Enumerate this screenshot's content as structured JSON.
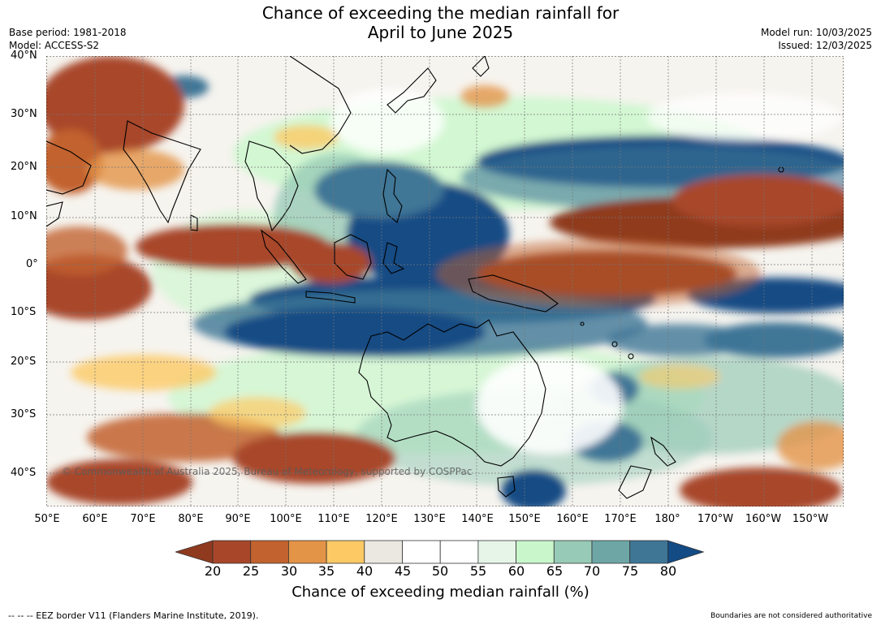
{
  "title_line1": "Chance of exceeding the median rainfall for",
  "title_line2": "April to June 2025",
  "base_period": "Base period: 1981-2018",
  "model": "Model: ACCESS-S2",
  "model_run": "Model run: 10/03/2025",
  "issued": "Issued: 12/03/2025",
  "lat_labels": [
    "40°N",
    "30°N",
    "20°N",
    "10°N",
    "0°",
    "10°S",
    "20°S",
    "30°S",
    "40°S"
  ],
  "lon_labels": [
    "50°E",
    "60°E",
    "70°E",
    "80°E",
    "90°E",
    "100°E",
    "110°E",
    "120°E",
    "130°E",
    "140°E",
    "150°E",
    "160°E",
    "170°E",
    "180°",
    "170°W",
    "160°W",
    "150°W"
  ],
  "copyright": "© Commonwealth of Australia 2025, Bureau of Meteorology, supported by COSPPac",
  "colorbar": {
    "title": "Chance of exceeding median rainfall (%)",
    "ticks": [
      "20",
      "25",
      "30",
      "35",
      "40",
      "45",
      "50",
      "55",
      "60",
      "65",
      "70",
      "75",
      "80"
    ],
    "colors": [
      "#8f3a1e",
      "#a8462a",
      "#c2622f",
      "#e39447",
      "#fdc964",
      "#ebe8e2",
      "#ffffff",
      "#ffffff",
      "#e6f5e8",
      "#c9f7cb",
      "#98cbb7",
      "#6ea6a6",
      "#3f7696",
      "#134b84"
    ]
  },
  "footer_left": "--  --  -- EEZ border V11 (Flanders Marine Institute, 2019).",
  "footer_right": "Boundaries are not considered authoritative"
}
